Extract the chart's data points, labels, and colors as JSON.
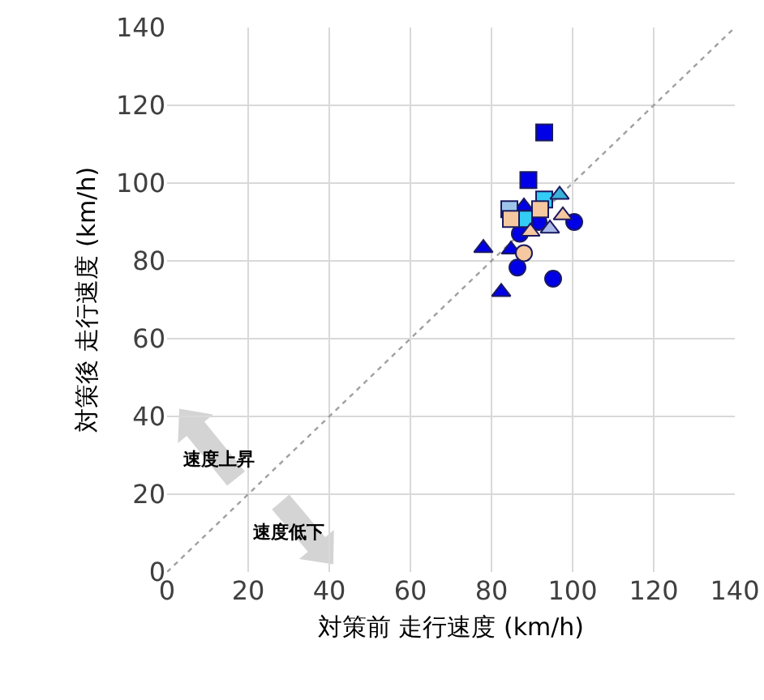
{
  "chart_data": {
    "type": "scatter",
    "xlabel": "対策前 走行速度 (km/h)",
    "ylabel": "対策後 走行速度 (km/h)",
    "xlim": [
      0,
      140
    ],
    "xticks": [
      0,
      20,
      40,
      60,
      80,
      100,
      120,
      140
    ],
    "ylim": [
      0,
      140
    ],
    "yticks": [
      0,
      20,
      40,
      60,
      80,
      100,
      120,
      140
    ],
    "grid": true,
    "series": [
      {
        "type": "line",
        "color": "#a0a0a0",
        "line_style": "dotted",
        "marker": "none",
        "x": [
          0,
          140
        ],
        "values": [
          0,
          140
        ]
      },
      {
        "color": "#0000e6",
        "marker": "circle",
        "x": [
          100.4,
          91.6,
          87,
          86.4,
          95.2
        ],
        "values": [
          90,
          90,
          87,
          78.3,
          75.4
        ]
      },
      {
        "color": "#0000e6",
        "marker": "triangle",
        "x": [
          88,
          78,
          84.8,
          82.4
        ],
        "values": [
          94,
          83.3,
          82.9,
          72
        ]
      },
      {
        "color": "#0000e6",
        "marker": "square",
        "x": [
          93,
          89.1
        ],
        "values": [
          113,
          100.8
        ]
      },
      {
        "color": "#33ccf5",
        "marker": "square",
        "x": [
          93,
          88
        ],
        "values": [
          95.8,
          90.8
        ]
      },
      {
        "color": "#9ec4ea",
        "marker": "square",
        "x": [
          84.4
        ],
        "values": [
          93.3
        ]
      },
      {
        "color": "#f5c8a0",
        "marker": "square",
        "x": [
          84.8,
          92
        ],
        "values": [
          90.8,
          93.3
        ]
      },
      {
        "color": "#f5c8a0",
        "marker": "circle",
        "x": [
          88
        ],
        "values": [
          82
        ]
      },
      {
        "color": "#f5c8a0",
        "marker": "triangle",
        "x": [
          97.6,
          89.6
        ],
        "values": [
          91.7,
          87.5
        ]
      },
      {
        "color": "#aab8e8",
        "marker": "triangle",
        "x": [
          94.4
        ],
        "values": [
          88.3
        ]
      },
      {
        "color": "#3bb0d8",
        "marker": "triangle",
        "x": [
          96.8
        ],
        "values": [
          97
        ]
      }
    ],
    "annotations": [
      "速度上昇",
      "速度低下"
    ]
  }
}
